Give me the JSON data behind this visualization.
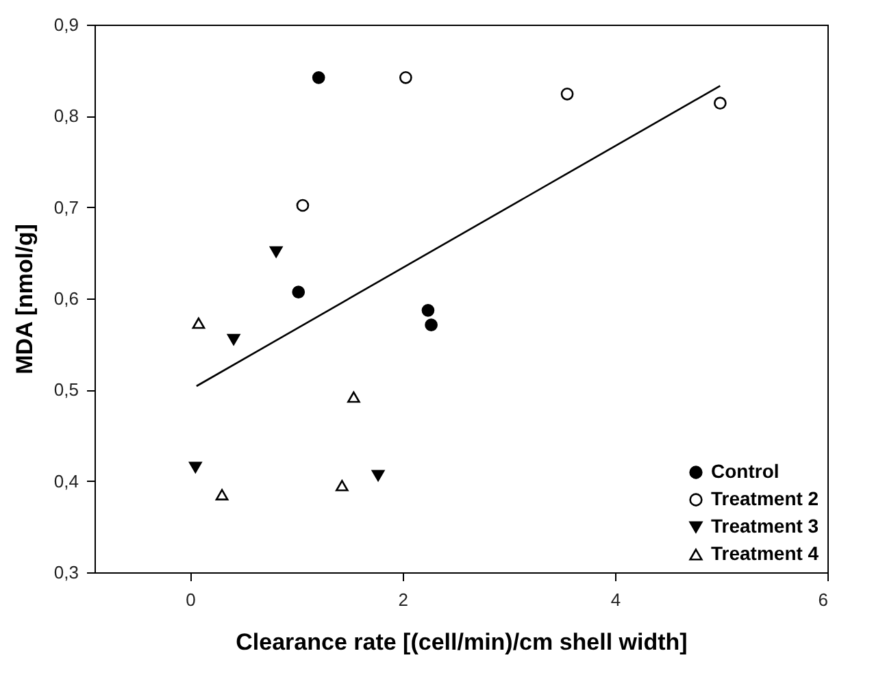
{
  "chart_data": {
    "type": "scatter",
    "xlabel": "Clearance rate [(cell/min)/cm shell width]",
    "ylabel": "MDA [nmol/g]",
    "xlim": [
      -0.9,
      6
    ],
    "ylim": [
      0.3,
      0.9
    ],
    "xticks": [
      0,
      2,
      4,
      6
    ],
    "yticks": [
      {
        "value": 0.3,
        "label": "0,3"
      },
      {
        "value": 0.4,
        "label": "0,4"
      },
      {
        "value": 0.5,
        "label": "0,5"
      },
      {
        "value": 0.6,
        "label": "0,6"
      },
      {
        "value": 0.7,
        "label": "0,7"
      },
      {
        "value": 0.8,
        "label": "0,8"
      },
      {
        "value": 0.9,
        "label": "0,9"
      }
    ],
    "grid": false,
    "legend": "bottom right",
    "series": [
      {
        "name": "Control",
        "color": "#000000",
        "marker": "circle",
        "x": [
          1.21,
          1.02,
          2.24,
          2.27
        ],
        "values": [
          0.842,
          0.607,
          0.587,
          0.571
        ]
      },
      {
        "name": "Treatment 2",
        "color": "#000000",
        "marker": "circle-open",
        "x": [
          1.06,
          2.03,
          3.55,
          4.99
        ],
        "values": [
          0.702,
          0.842,
          0.824,
          0.814
        ]
      },
      {
        "name": "Treatment 3",
        "color": "#000000",
        "marker": "triangle-down",
        "x": [
          0.81,
          0.41,
          0.05,
          1.77
        ],
        "values": [
          0.651,
          0.555,
          0.415,
          0.406
        ]
      },
      {
        "name": "Treatment 4",
        "color": "#000000",
        "marker": "triangle-open",
        "x": [
          0.08,
          1.54,
          0.3,
          1.43
        ],
        "values": [
          0.573,
          0.492,
          0.385,
          0.395
        ]
      },
      {
        "type": "line",
        "color": "#000000",
        "marker": "none",
        "line_style": "solid",
        "x": [
          0.06,
          4.99
        ],
        "values": [
          0.504,
          0.833
        ]
      }
    ]
  }
}
